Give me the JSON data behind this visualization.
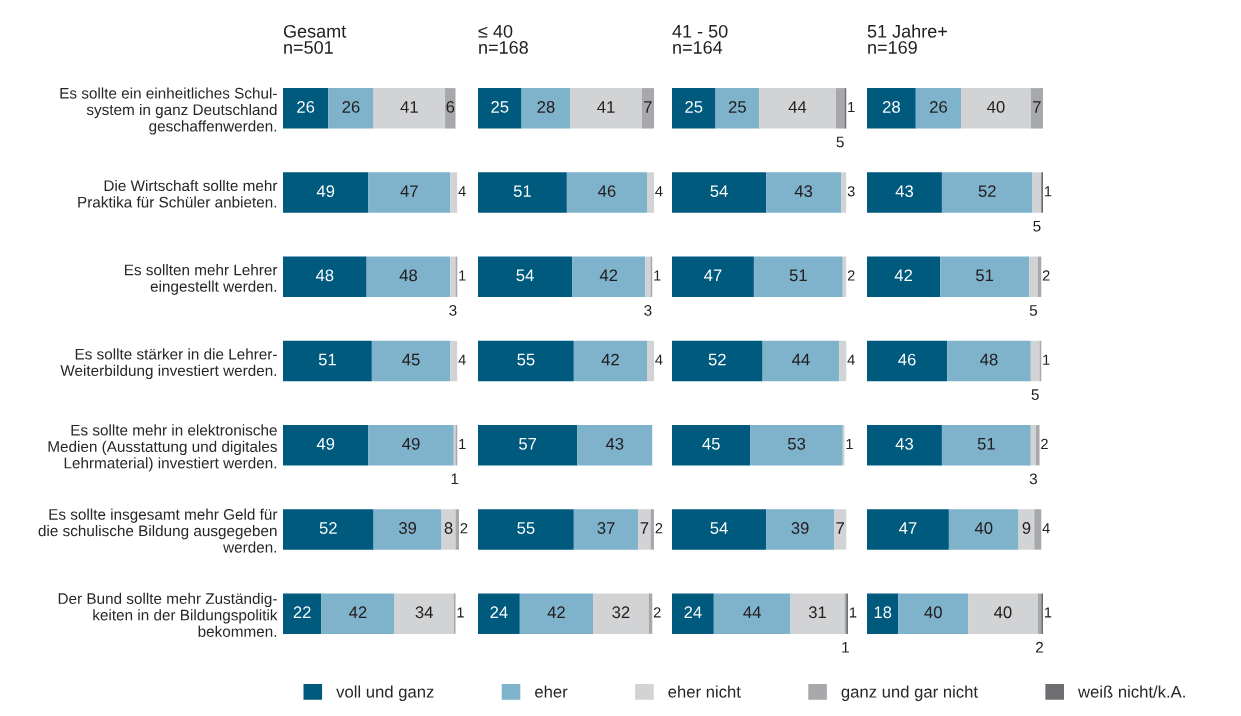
{
  "chart_data": [
    {
      "type": "bar",
      "orientation": "horizontal",
      "stacked": true,
      "data_labels": true,
      "tick_labels": "y",
      "legend": "bottom",
      "title": "Gesamt\nn=501",
      "categories": [
        "Es sollte ein einheitliches Schul-\nsystem in ganz Deutschland\ngeschaffenwerden.",
        "Die Wirtschaft sollte mehr\nPraktika für Schüler anbieten.",
        "Es sollten mehr Lehrer\neingestellt werden.",
        "Es sollte stärker in die Lehrer-\nWeiterbildung investiert werden.",
        "Es sollte mehr in elektronische\nMedien (Ausstattung und digitales\nLehrmaterial) investiert werden.",
        "Es sollte insgesamt mehr Geld für\ndie schulische Bildung ausgegeben\nwerden.",
        "Der Bund sollte mehr Zuständig-\nkeiten in der Bildungspolitik\nbekommen."
      ],
      "series": [
        {
          "name": "voll und ganz",
          "color": "#005a7e",
          "values": [
            26,
            49,
            48,
            51,
            49,
            52,
            22
          ]
        },
        {
          "name": "eher",
          "color": "#7fb2cb",
          "values": [
            26,
            47,
            48,
            45,
            49,
            39,
            42
          ]
        },
        {
          "name": "eher nicht",
          "color": "#d1d3d4",
          "values": [
            41,
            4,
            3,
            4,
            1,
            8,
            34
          ]
        },
        {
          "name": "ganz und gar nicht",
          "color": "#a6a8ab",
          "values": [
            6,
            null,
            1,
            null,
            1,
            2,
            1
          ]
        },
        {
          "name": "weiß nicht/k.A.",
          "color": "#6d6e71",
          "values": [
            null,
            null,
            null,
            null,
            null,
            null,
            null
          ]
        }
      ]
    },
    {
      "type": "bar",
      "orientation": "horizontal",
      "stacked": true,
      "data_labels": true,
      "tick_labels": false,
      "title": "≤ 40\nn=168",
      "series": [
        {
          "color": "#005a7e",
          "values": [
            25,
            51,
            54,
            55,
            57,
            55,
            24
          ]
        },
        {
          "color": "#7fb2cb",
          "values": [
            28,
            46,
            42,
            42,
            43,
            37,
            42
          ]
        },
        {
          "color": "#d1d3d4",
          "values": [
            41,
            4,
            3,
            4,
            null,
            7,
            32
          ]
        },
        {
          "color": "#a6a8ab",
          "values": [
            7,
            null,
            1,
            null,
            null,
            2,
            2
          ]
        },
        {
          "color": "#6d6e71",
          "values": [
            null,
            null,
            null,
            null,
            null,
            null,
            null
          ]
        }
      ]
    },
    {
      "type": "bar",
      "orientation": "horizontal",
      "stacked": true,
      "data_labels": true,
      "tick_labels": false,
      "title": "41 - 50\nn=164",
      "series": [
        {
          "color": "#005a7e",
          "values": [
            25,
            54,
            47,
            52,
            45,
            54,
            24
          ]
        },
        {
          "color": "#7fb2cb",
          "values": [
            25,
            43,
            51,
            44,
            53,
            39,
            44
          ]
        },
        {
          "color": "#d1d3d4",
          "values": [
            44,
            3,
            2,
            4,
            1,
            7,
            31
          ]
        },
        {
          "color": "#a6a8ab",
          "values": [
            5,
            null,
            null,
            null,
            null,
            null,
            1
          ]
        },
        {
          "color": "#6d6e71",
          "values": [
            1,
            null,
            null,
            null,
            null,
            null,
            1
          ]
        }
      ]
    },
    {
      "type": "bar",
      "orientation": "horizontal",
      "stacked": true,
      "data_labels": true,
      "tick_labels": false,
      "title": "51 Jahre+\nn=169",
      "series": [
        {
          "color": "#005a7e",
          "values": [
            28,
            43,
            42,
            46,
            43,
            47,
            18
          ]
        },
        {
          "color": "#7fb2cb",
          "values": [
            26,
            52,
            51,
            48,
            51,
            40,
            40
          ]
        },
        {
          "color": "#d1d3d4",
          "values": [
            40,
            5,
            5,
            5,
            3,
            9,
            40
          ]
        },
        {
          "color": "#a6a8ab",
          "values": [
            7,
            null,
            2,
            1,
            2,
            4,
            2
          ]
        },
        {
          "color": "#6d6e71",
          "values": [
            null,
            1,
            null,
            null,
            null,
            null,
            1
          ]
        }
      ]
    }
  ]
}
